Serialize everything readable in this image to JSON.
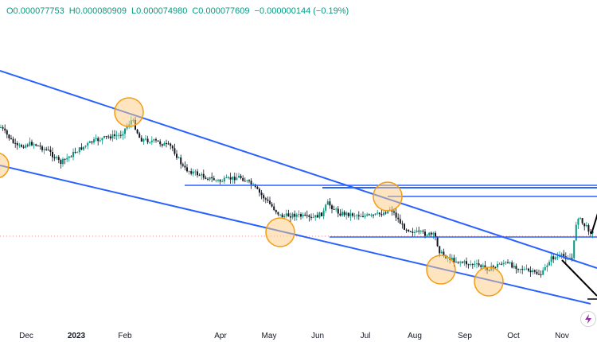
{
  "ohlc": {
    "open": "O0.000077753",
    "high": "H0.000080909",
    "low": "L0.000074980",
    "close": "C0.000077609",
    "change": "−0.000000144 (−0.19%)"
  },
  "x_axis_labels": [
    "Dec",
    "2023",
    "Feb",
    "Apr",
    "May",
    "Jun",
    "Jul",
    "Aug",
    "Sep",
    "Oct",
    "Nov"
  ],
  "colors": {
    "up": "#089981",
    "down": "#131722",
    "trendline": "#2962ff",
    "marker_fill": "#ffcc80",
    "marker_stroke": "#f39c12",
    "arrow": "#000000"
  },
  "icons": {
    "flash": "lightning-icon"
  }
}
